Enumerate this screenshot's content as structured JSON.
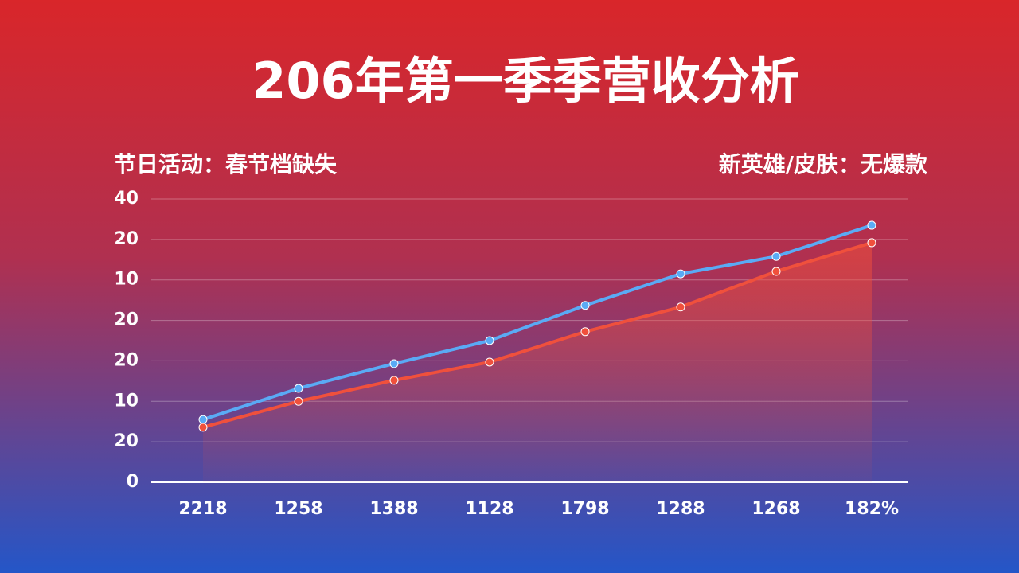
{
  "chart_data": {
    "type": "line",
    "title": "206年第一季季营收分析",
    "annotations": [
      "节日活动：春节档缺失",
      "新英雄/皮肤：无爆款"
    ],
    "categories": [
      "2218",
      "1258",
      "1388",
      "1128",
      "1798",
      "1288",
      "1268",
      "182%"
    ],
    "series": [
      {
        "color": "#5aaaf5",
        "values": [
          1.55,
          2.32,
          2.93,
          3.5,
          4.37,
          5.15,
          5.58,
          6.35
        ]
      },
      {
        "color": "#f0503c",
        "values": [
          1.36,
          2.0,
          2.52,
          2.97,
          3.72,
          4.33,
          5.21,
          5.92
        ]
      }
    ],
    "ylim": [
      0,
      7
    ],
    "yticks": [
      0,
      {
        "value": 1,
        "label": "20"
      },
      {
        "value": 2,
        "label": "10"
      },
      {
        "value": 3,
        "label": "20"
      },
      {
        "value": 4,
        "label": "20"
      },
      {
        "value": 5,
        "label": "10"
      },
      {
        "value": 6,
        "label": "20"
      },
      {
        "value": 7,
        "label": "40"
      }
    ],
    "grid": true
  }
}
